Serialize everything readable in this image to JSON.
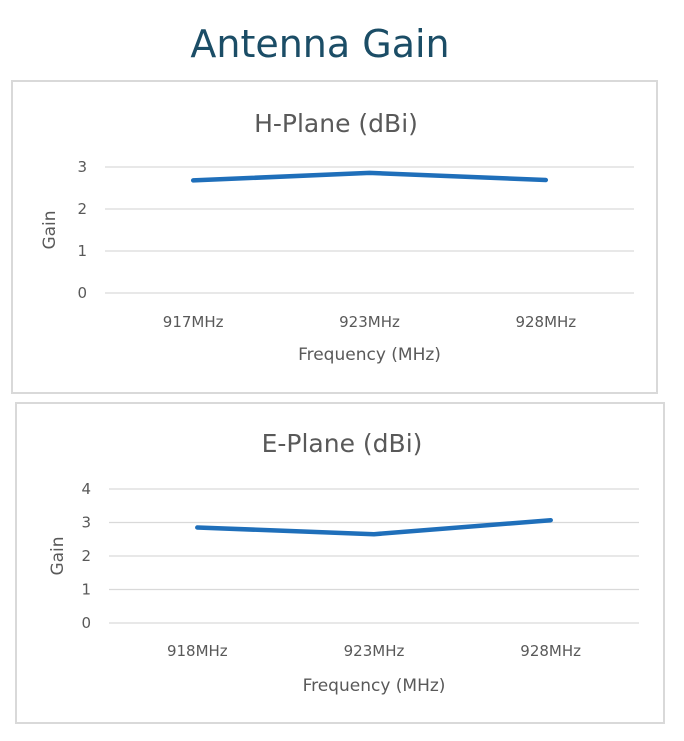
{
  "title": "Antenna Gain",
  "chart_data": [
    {
      "type": "line",
      "title": "H-Plane (dBi)",
      "xlabel": "Frequency (MHz)",
      "ylabel": "Gain",
      "categories": [
        "917MHz",
        "923MHz",
        "928MHz"
      ],
      "series": [
        {
          "values": [
            2.68,
            2.86,
            2.69
          ],
          "color": "#1f6fba"
        }
      ],
      "ylim": [
        0,
        3
      ],
      "yticks": [
        "0",
        "1",
        "2",
        "3"
      ],
      "grid": true,
      "legend": "none"
    },
    {
      "type": "line",
      "title": "E-Plane (dBi)",
      "xlabel": "Frequency (MHz)",
      "ylabel": "Gain",
      "categories": [
        "918MHz",
        "923MHz",
        "928MHz"
      ],
      "series": [
        {
          "values": [
            2.85,
            2.65,
            3.07
          ],
          "color": "#1f6fba"
        }
      ],
      "ylim": [
        0,
        4
      ],
      "yticks": [
        "0",
        "1",
        "2",
        "3",
        "4"
      ],
      "grid": true,
      "legend": "none"
    }
  ]
}
